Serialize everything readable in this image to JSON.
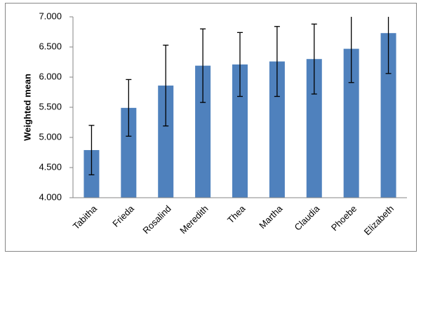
{
  "chart_data": {
    "type": "bar",
    "y_label": "Weighted mean",
    "categories": [
      "Tabitha",
      "Frieda",
      "Rosalind",
      "Meredith",
      "Thea",
      "Martha",
      "Claudia",
      "Phoebe",
      "Elizabeth"
    ],
    "values": [
      4.79,
      5.49,
      5.86,
      6.19,
      6.21,
      6.26,
      6.3,
      6.47,
      6.73
    ],
    "errors": [
      0.41,
      0.47,
      0.67,
      0.61,
      0.53,
      0.58,
      0.58,
      0.56,
      0.67
    ],
    "color": "#4f81bd",
    "ylim": [
      4,
      7
    ],
    "yticks": [
      {
        "value": 4,
        "label": "4.000"
      },
      {
        "value": 4.5,
        "label": "4.500"
      },
      {
        "value": 5,
        "label": "5.000"
      },
      {
        "value": 5.5,
        "label": "5.500"
      },
      {
        "value": 6,
        "label": "6.000"
      },
      {
        "value": 6.5,
        "label": "6.500"
      },
      {
        "value": 7,
        "label": "7.000"
      }
    ],
    "grid": false
  }
}
